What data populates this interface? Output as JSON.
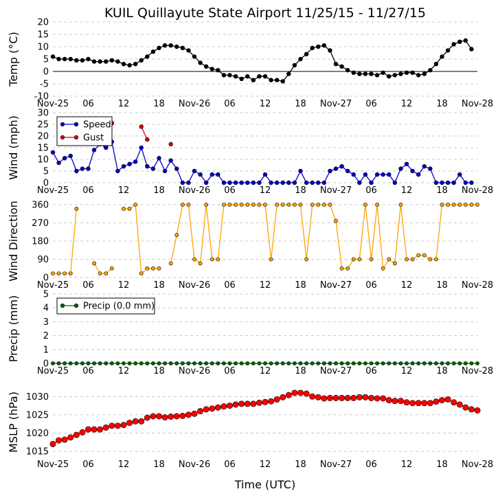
{
  "title": "KUIL Quillayute State Airport 11/25/15 - 11/27/15",
  "xlabel": "Time (UTC)",
  "x_ticks": [
    {
      "hour": 0,
      "label": "Nov-25"
    },
    {
      "hour": 6,
      "label": "06"
    },
    {
      "hour": 12,
      "label": "12"
    },
    {
      "hour": 18,
      "label": "18"
    },
    {
      "hour": 24,
      "label": "Nov-26"
    },
    {
      "hour": 30,
      "label": "06"
    },
    {
      "hour": 36,
      "label": "12"
    },
    {
      "hour": 42,
      "label": "18"
    },
    {
      "hour": 48,
      "label": "Nov-27"
    },
    {
      "hour": 54,
      "label": "06"
    },
    {
      "hour": 60,
      "label": "12"
    },
    {
      "hour": 66,
      "label": "18"
    },
    {
      "hour": 72,
      "label": "Nov-28"
    }
  ],
  "colors": {
    "temp": "#000000",
    "speed": "#0000cc",
    "gust": "#dd0000",
    "direction": "#ffa500",
    "precip": "#006400",
    "mslp": "#ff0000",
    "grid": "#bbbbbb"
  },
  "chart_data": [
    {
      "type": "line",
      "key": "temp",
      "ylabel": "Temp (°C)",
      "ylim": [
        -10,
        20
      ],
      "yticks": [
        -10,
        -5,
        0,
        5,
        10,
        15,
        20
      ],
      "zero_line": true,
      "hours_start": 0,
      "hours_end": 72,
      "series": [
        {
          "name": "Temp",
          "color_key": "temp",
          "values": [
            6,
            5,
            5,
            5,
            4.5,
            4.5,
            5,
            4,
            4,
            4,
            4.5,
            4,
            3,
            2.5,
            3,
            4.5,
            6,
            8,
            9.5,
            10.5,
            10.5,
            10,
            9.5,
            8.5,
            6,
            3.5,
            2,
            1,
            0.5,
            -1.5,
            -1.5,
            -2,
            -3,
            -2,
            -3.5,
            -2,
            -2,
            -3.5,
            -3.5,
            -4,
            -1,
            2.5,
            5,
            7,
            9.5,
            10,
            10.5,
            8.5,
            3,
            2,
            0.5,
            -0.5,
            -1,
            -1,
            -1,
            -1.5,
            -0.5,
            -2,
            -1.5,
            -1,
            -0.5,
            -0.5,
            -1.5,
            -1,
            0.5,
            3,
            6,
            8.5,
            11,
            12,
            12.5,
            9
          ]
        }
      ]
    },
    {
      "type": "line",
      "key": "wind",
      "ylabel": "Wind (mph)",
      "ylim": [
        0,
        30
      ],
      "yticks": [
        0,
        5,
        10,
        15,
        20,
        25,
        30
      ],
      "hours_start": 0,
      "hours_end": 72,
      "legend": [
        {
          "name": "Speed",
          "color_key": "speed"
        },
        {
          "name": "Gust",
          "color_key": "gust"
        }
      ],
      "series": [
        {
          "name": "Speed",
          "color_key": "speed",
          "values": [
            13,
            8.5,
            10.5,
            11.5,
            5,
            6,
            6,
            14,
            16.5,
            15,
            17.5,
            5,
            7,
            8,
            9,
            15,
            7,
            6,
            10.5,
            5,
            9.5,
            6,
            0,
            0,
            5,
            3.5,
            0,
            3.5,
            3.5,
            0,
            0,
            0,
            0,
            0,
            0,
            0,
            3.5,
            0,
            0,
            0,
            0,
            0,
            5,
            0,
            0,
            0,
            0,
            5,
            6,
            7,
            5,
            3.5,
            0,
            3.5,
            0,
            3.5,
            3.5,
            3.5,
            0,
            6,
            8,
            5,
            3.5,
            7,
            6,
            0,
            0,
            0,
            0,
            3.5,
            0,
            0
          ]
        },
        {
          "name": "Gust",
          "color_key": "gust",
          "values": [
            null,
            null,
            null,
            null,
            null,
            null,
            null,
            null,
            null,
            22,
            25.5,
            null,
            null,
            null,
            null,
            24,
            18.5,
            null,
            null,
            null,
            16.5,
            null,
            null,
            null,
            null,
            null,
            null,
            null,
            null,
            null,
            null,
            null,
            null,
            null,
            null,
            null,
            null,
            null,
            null,
            null,
            null,
            null,
            null,
            null,
            null,
            null,
            null,
            null,
            null,
            null,
            null,
            null,
            null,
            null,
            null,
            null,
            null,
            null,
            null,
            null,
            null,
            null,
            null,
            null,
            null,
            null,
            null,
            null,
            null,
            null,
            null,
            null
          ]
        }
      ]
    },
    {
      "type": "line",
      "key": "direction",
      "ylabel": "Wind Direction",
      "ylim": [
        0,
        360
      ],
      "yticks": [
        0,
        90,
        180,
        270,
        360
      ],
      "hours_start": 0,
      "hours_end": 72,
      "series": [
        {
          "name": "Direction",
          "color_key": "direction",
          "values": [
            20,
            20,
            20,
            20,
            340,
            null,
            null,
            70,
            20,
            20,
            45,
            null,
            340,
            340,
            360,
            20,
            45,
            45,
            45,
            null,
            70,
            210,
            360,
            360,
            90,
            70,
            360,
            90,
            90,
            360,
            360,
            360,
            360,
            360,
            360,
            360,
            360,
            90,
            360,
            360,
            360,
            360,
            360,
            90,
            360,
            360,
            360,
            360,
            280,
            45,
            45,
            90,
            90,
            360,
            90,
            360,
            45,
            90,
            70,
            360,
            90,
            90,
            110,
            110,
            90,
            90,
            360,
            360,
            360,
            360,
            360,
            360,
            360
          ]
        }
      ]
    },
    {
      "type": "line",
      "key": "precip",
      "ylabel": "Precip (mm)",
      "ylim": [
        0,
        5
      ],
      "yticks": [
        0,
        1,
        2,
        3,
        4,
        5
      ],
      "hours_start": 0,
      "hours_end": 72,
      "legend": [
        {
          "name": "Precip (0.0 mm)",
          "color_key": "precip"
        }
      ],
      "series": [
        {
          "name": "Precip",
          "color_key": "precip",
          "values": [
            0,
            0,
            0,
            0,
            0,
            0,
            0,
            0,
            0,
            0,
            0,
            0,
            0,
            0,
            0,
            0,
            0,
            0,
            0,
            0,
            0,
            0,
            0,
            0,
            0,
            0,
            0,
            0,
            0,
            0,
            0,
            0,
            0,
            0,
            0,
            0,
            0,
            0,
            0,
            0,
            0,
            0,
            0,
            0,
            0,
            0,
            0,
            0,
            0,
            0,
            0,
            0,
            0,
            0,
            0,
            0,
            0,
            0,
            0,
            0,
            0,
            0,
            0,
            0,
            0,
            0,
            0,
            0,
            0,
            0,
            0,
            0,
            0
          ]
        }
      ]
    },
    {
      "type": "line",
      "key": "mslp",
      "ylabel": "MSLP (hPa)",
      "ylim": [
        1013.5,
        1032.5
      ],
      "yticks": [
        1015,
        1020,
        1025,
        1030
      ],
      "hours_start": 0,
      "hours_end": 72,
      "series": [
        {
          "name": "MSLP",
          "color_key": "mslp",
          "values": [
            1017,
            1018,
            1018.2,
            1018.8,
            1019.5,
            1020.2,
            1021,
            1021,
            1021,
            1021.5,
            1022,
            1022,
            1022.2,
            1022.8,
            1023.2,
            1023.2,
            1024.2,
            1024.6,
            1024.6,
            1024.3,
            1024.5,
            1024.6,
            1024.7,
            1025,
            1025.3,
            1026,
            1026.5,
            1026.7,
            1027,
            1027.3,
            1027.5,
            1027.8,
            1028,
            1028,
            1028,
            1028.3,
            1028.5,
            1028.7,
            1029.2,
            1029.8,
            1030.4,
            1031,
            1031,
            1030.8,
            1030,
            1029.8,
            1029.5,
            1029.6,
            1029.6,
            1029.6,
            1029.6,
            1029.6,
            1029.8,
            1029.8,
            1029.6,
            1029.5,
            1029.5,
            1029,
            1028.8,
            1028.8,
            1028.4,
            1028.2,
            1028.2,
            1028.2,
            1028.2,
            1028.6,
            1029,
            1029.2,
            1028.4,
            1027.8,
            1027,
            1026.5,
            1026.2
          ]
        }
      ]
    }
  ]
}
